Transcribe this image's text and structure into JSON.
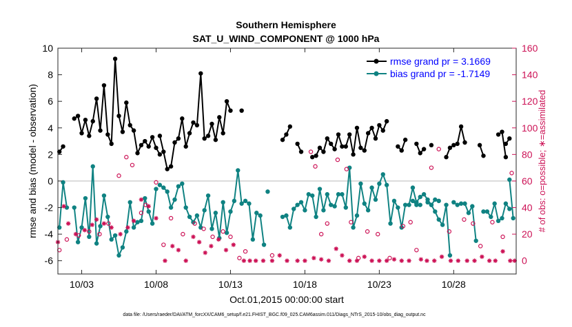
{
  "colors": {
    "rmse": "#000000",
    "bias": "#0f8282",
    "obs": "#cc1155",
    "left_axis_text": "#000000",
    "right_axis": "#cc1155",
    "legend_text": "#0000ff",
    "zero_line": "#c0c0c0"
  },
  "chart_data": {
    "type": "line",
    "title": "Southern Hemisphere",
    "subtitle": "SAT_U_WIND_COMPONENT @ 1000 hPa",
    "xlabel": "Oct.01,2015 00:00:00 start",
    "ylabel_left": "rmse and bias (model - observation)",
    "ylabel_right": "# of obs: o=possible; ∗=assimilated",
    "footer": "data file: /Users/raeder/DAI/ATM_forcXX/CAM6_setup/f.e21.FHIST_BGC.f09_025.CAM6assim.011/Diags_NTrS_2015-10/obs_diag_output.nc",
    "x_range_days": [
      0.4,
      31.2
    ],
    "x_ticks": [
      {
        "day": 2,
        "label": "10/03"
      },
      {
        "day": 7,
        "label": "10/08"
      },
      {
        "day": 12,
        "label": "10/13"
      },
      {
        "day": 17,
        "label": "10/18"
      },
      {
        "day": 22,
        "label": "10/23"
      },
      {
        "day": 27,
        "label": "10/28"
      }
    ],
    "ylim_left": [
      -7,
      10
    ],
    "yticks_left": [
      "-6",
      "-4",
      "-2",
      "0",
      "2",
      "4",
      "6",
      "8",
      "10"
    ],
    "ylim_right": [
      -10,
      160
    ],
    "yticks_right": [
      "0",
      "20",
      "40",
      "60",
      "80",
      "100",
      "120",
      "140",
      "160"
    ],
    "grid": false,
    "legend_position": "top-right",
    "legend": [
      {
        "name": "rmse",
        "label": "rmse grand pr = 3.1669"
      },
      {
        "name": "bias",
        "label": "bias grand pr = -1.7149"
      }
    ],
    "rmse_segments": [
      {
        "x0": 0.5,
        "dx": 0.25,
        "y": [
          2.2,
          2.6
        ]
      },
      {
        "x0": 1.5,
        "dx": 0.25,
        "y": [
          4.7,
          4.9,
          3.6,
          4.6,
          3.4,
          4.5,
          6.2,
          3.8,
          7.2,
          3.5,
          2.8,
          9.2,
          4.9,
          3.7,
          5.9,
          4.2,
          3.8,
          2.1,
          2.7,
          3.0,
          2.6,
          3.3,
          2.5,
          2.0
        ]
      },
      {
        "x0": 7.25,
        "dx": 0.25,
        "y": [
          3.4,
          2.2,
          0.9,
          1.1,
          2.9,
          3.2,
          4.7,
          2.6,
          3.6,
          4.4,
          4.2,
          8.1,
          3.2,
          3.4,
          4.3,
          3.1,
          4.8,
          3.6,
          6.0,
          5.3
        ]
      },
      {
        "x0": 12.75,
        "dx": 0.25,
        "y": [
          5.3
        ]
      },
      {
        "x0": 15.5,
        "dx": 0.25,
        "y": [
          3.1,
          3.5,
          4.1
        ]
      },
      {
        "x0": 16.5,
        "dx": 0.25,
        "y": [
          2.8,
          2.2
        ]
      },
      {
        "x0": 17.5,
        "dx": 0.25,
        "y": [
          1.8,
          1.9,
          2.5,
          2.2,
          3.2,
          2.8,
          2.4,
          3.5,
          2.6,
          2.6,
          3.5,
          2.0,
          4.0,
          2.5,
          2.3,
          3.6,
          4.0,
          3.2,
          4.2,
          3.8,
          4.5
        ]
      },
      {
        "x0": 23.25,
        "dx": 0.25,
        "y": [
          2.6,
          2.3,
          3.1
        ]
      },
      {
        "x0": 24.5,
        "dx": 0.25,
        "y": [
          2.8,
          2.1,
          2.4
        ]
      },
      {
        "x0": 25.5,
        "dx": 0.25,
        "y": [
          2.7
        ]
      },
      {
        "x0": 26.5,
        "dx": 0.25,
        "y": [
          1.8,
          2.5,
          2.7,
          2.8,
          4.1,
          2.9
        ]
      },
      {
        "x0": 28.75,
        "dx": 0.25,
        "y": [
          2.7,
          1.9
        ]
      },
      {
        "x0": 30.0,
        "dx": 0.25,
        "y": [
          3.5,
          3.7,
          1.8
        ]
      },
      {
        "x0": 30.5,
        "dx": 0.25,
        "y": [
          2.8,
          3.2
        ]
      }
    ],
    "bias_segments": [
      {
        "x0": 0.5,
        "dx": 0.25,
        "y": [
          -3.5,
          -0.1,
          -2.0
        ]
      },
      {
        "x0": 1.5,
        "dx": 0.25,
        "y": [
          -2.0,
          -4.6,
          -3.5,
          -1.3,
          -4.2,
          1.1,
          -4.7,
          -3.4,
          -1.1,
          -2.7,
          -4.4,
          -4.1,
          -5.6,
          -5.0,
          -3.8,
          -1.6,
          -3.5,
          -3.1,
          -3.0,
          -1.3,
          -2.3,
          -3.2,
          -0.6
        ]
      },
      {
        "x0": 7.25,
        "dx": 0.25,
        "y": [
          -0.3,
          -0.5,
          -0.8,
          -2.0,
          -1.4,
          -0.4,
          -0.2,
          -2.0,
          -2.7,
          -3.1,
          -2.6,
          -3.5,
          -2.2,
          -1.1,
          -3.6,
          -2.4,
          -4.3,
          -1.6,
          -3.9,
          -2.3,
          -1.5,
          0.8,
          -1.7,
          -1.5,
          -1.7,
          -4.4,
          -2.4,
          -2.6,
          -4.8
        ]
      },
      {
        "x0": 14.5,
        "dx": 0.25,
        "y": [
          -0.8
        ]
      },
      {
        "x0": 15.5,
        "dx": 0.25,
        "y": [
          -2.7,
          -2.6,
          -3.5,
          -2.1,
          -1.8,
          -1.6,
          -2.2,
          -1.0,
          -1.1,
          -2.7,
          -0.6,
          -2.2,
          -1.0,
          -1.8,
          -1.9,
          -1.0,
          -1.0,
          -2.0,
          1.0,
          -3.5,
          -2.6,
          -0.2,
          -1.7,
          -2.2,
          -0.5,
          -1.4,
          -0.2,
          0.5,
          -0.3,
          -3.2,
          -1.5,
          -2.0,
          -3.5,
          -1.8,
          -1.8,
          -0.5,
          -1.6,
          -1.2,
          -1.0,
          -1.4,
          -1.8,
          -1.4,
          -1.5
        ]
      },
      {
        "x0": 24.25,
        "dx": 0.25,
        "y": [
          -1.5,
          -1.8
        ]
      },
      {
        "x0": 24.75,
        "dx": 0.25,
        "y": [
          -1.8
        ]
      },
      {
        "x0": 25.25,
        "dx": 0.25,
        "y": [
          -1.6,
          -1.8,
          -2.3,
          -2.9,
          -3.3,
          -1.8,
          -5.6
        ]
      },
      {
        "x0": 27.0,
        "dx": 0.25,
        "y": [
          -1.6,
          -1.8,
          -1.7,
          -1.7,
          -2.4,
          -1.9,
          -4.5
        ]
      },
      {
        "x0": 29.0,
        "dx": 0.25,
        "y": [
          -2.3,
          -2.3,
          -2.7,
          -1.7,
          -3.0,
          -2.8,
          -1.7,
          -2.1
        ]
      },
      {
        "x0": 30.75,
        "dx": 0.25,
        "y": [
          0.1,
          -2.8
        ]
      }
    ],
    "obs_possible_scatter": [
      [
        0.5,
        8
      ],
      [
        1.0,
        16
      ],
      [
        1.8,
        19
      ],
      [
        2.5,
        22
      ],
      [
        3.2,
        20
      ],
      [
        3.8,
        28
      ],
      [
        4.5,
        64
      ],
      [
        5.0,
        78
      ],
      [
        5.4,
        72
      ],
      [
        6.0,
        36
      ],
      [
        6.3,
        42
      ],
      [
        7.0,
        59
      ],
      [
        7.5,
        12
      ],
      [
        8.0,
        32
      ],
      [
        8.8,
        20
      ],
      [
        9.6,
        28
      ],
      [
        10.2,
        24
      ],
      [
        10.8,
        18
      ],
      [
        11.5,
        22
      ],
      [
        12.0,
        18
      ],
      [
        12.6,
        2
      ],
      [
        13.0,
        7
      ],
      [
        14.8,
        4
      ],
      [
        17.4,
        82
      ],
      [
        17.7,
        71
      ],
      [
        18.1,
        20
      ],
      [
        18.5,
        28
      ],
      [
        19.2,
        76
      ],
      [
        19.8,
        69
      ],
      [
        20.1,
        29
      ],
      [
        20.6,
        2
      ],
      [
        21.2,
        22
      ],
      [
        21.9,
        20
      ],
      [
        22.7,
        2
      ],
      [
        23.6,
        26
      ],
      [
        24.1,
        29
      ],
      [
        24.5,
        8
      ],
      [
        25.5,
        70
      ],
      [
        26.0,
        84
      ],
      [
        26.7,
        22
      ],
      [
        27.7,
        31
      ],
      [
        28.3,
        28
      ],
      [
        28.8,
        11
      ],
      [
        29.6,
        29
      ],
      [
        30.3,
        18
      ],
      [
        30.9,
        66
      ]
    ],
    "obs_assim_scatter": [
      [
        0.4,
        14
      ],
      [
        0.8,
        41
      ],
      [
        1.1,
        28
      ],
      [
        1.6,
        20
      ],
      [
        2.2,
        23
      ],
      [
        2.7,
        27
      ],
      [
        3.0,
        31
      ],
      [
        3.5,
        28
      ],
      [
        4.0,
        25
      ],
      [
        4.6,
        20
      ],
      [
        5.1,
        25
      ],
      [
        5.5,
        30
      ],
      [
        6.0,
        46
      ],
      [
        6.5,
        41
      ],
      [
        7.0,
        32
      ],
      [
        7.6,
        0
      ],
      [
        8.1,
        11
      ],
      [
        8.5,
        8
      ],
      [
        9.0,
        0
      ],
      [
        9.5,
        18
      ],
      [
        9.9,
        14
      ],
      [
        10.3,
        6
      ],
      [
        10.7,
        11
      ],
      [
        11.2,
        16
      ],
      [
        11.7,
        8
      ],
      [
        12.2,
        12
      ],
      [
        12.9,
        0
      ],
      [
        13.3,
        0
      ],
      [
        13.7,
        0
      ],
      [
        14.2,
        0
      ],
      [
        14.8,
        0
      ],
      [
        15.3,
        4
      ],
      [
        15.8,
        0
      ],
      [
        16.5,
        0
      ],
      [
        17.0,
        0
      ],
      [
        17.6,
        2
      ],
      [
        18.1,
        1
      ],
      [
        18.6,
        0
      ],
      [
        19.1,
        9
      ],
      [
        19.5,
        4
      ],
      [
        20.0,
        0
      ],
      [
        20.5,
        0
      ],
      [
        21.0,
        3
      ],
      [
        21.5,
        0
      ],
      [
        22.0,
        0
      ],
      [
        22.5,
        0
      ],
      [
        23.0,
        1
      ],
      [
        23.5,
        0
      ],
      [
        24.0,
        0
      ],
      [
        24.8,
        1
      ],
      [
        25.2,
        0
      ],
      [
        25.7,
        0
      ],
      [
        26.2,
        3
      ],
      [
        26.8,
        0
      ],
      [
        27.3,
        0
      ],
      [
        27.9,
        0
      ],
      [
        28.4,
        0
      ],
      [
        28.9,
        3
      ],
      [
        29.4,
        0
      ],
      [
        29.8,
        0
      ],
      [
        30.3,
        7
      ],
      [
        30.8,
        0
      ],
      [
        31.1,
        0
      ]
    ]
  }
}
